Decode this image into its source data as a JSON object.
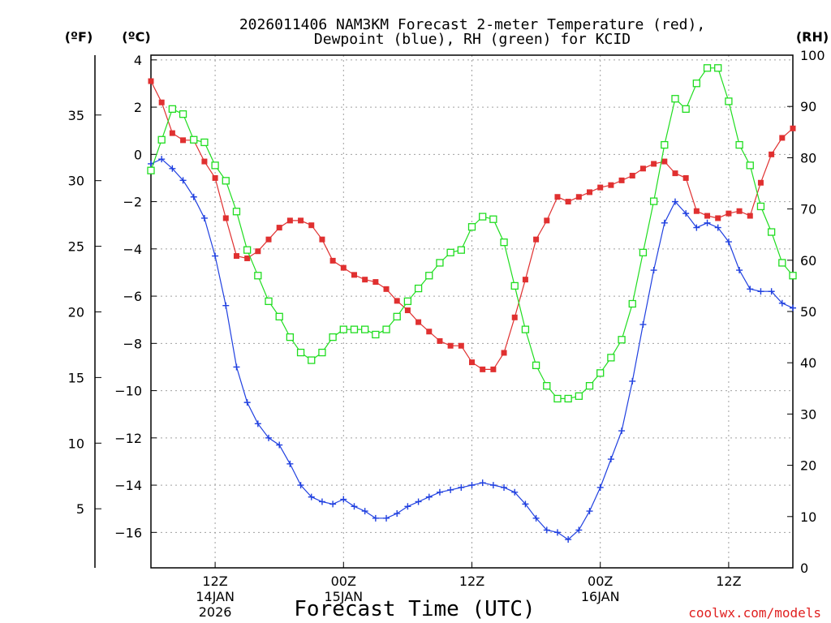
{
  "chart_data": {
    "type": "line",
    "title_line1": "2026011406 NAM3KM Forecast 2-meter Temperature (red),",
    "title_line2": "Dewpoint (blue), RH (green) for KCID",
    "unit_f": "(ºF)",
    "unit_c": "(ºC)",
    "unit_rh": "(RH)",
    "xlabel": "Forecast Time (UTC)",
    "credit": "coolwx.com/models",
    "x_start_hour": 6,
    "x_end_hour": 66,
    "x_step_hours": 1,
    "ylim_c": [
      -17.5,
      4.2
    ],
    "ylim_rh": [
      0,
      100
    ],
    "f_ticks": [
      35,
      30,
      25,
      20,
      15,
      10,
      5
    ],
    "c_ticks": [
      4,
      2,
      0,
      -2,
      -4,
      -6,
      -8,
      -10,
      -12,
      -14,
      -16
    ],
    "rh_ticks": [
      100,
      90,
      80,
      70,
      60,
      50,
      40,
      30,
      20,
      10,
      0
    ],
    "x_ticks": [
      {
        "hour": 12,
        "label": "12Z",
        "date": "14JAN",
        "year": "2026"
      },
      {
        "hour": 24,
        "label": "00Z",
        "date": "15JAN",
        "year": ""
      },
      {
        "hour": 36,
        "label": "12Z",
        "date": "",
        "year": ""
      },
      {
        "hour": 48,
        "label": "00Z",
        "date": "16JAN",
        "year": ""
      },
      {
        "hour": 60,
        "label": "12Z",
        "date": "",
        "year": ""
      }
    ],
    "series": [
      {
        "name": "2-meter Temperature",
        "unit": "C",
        "color": "#e03030",
        "marker": "filled-square",
        "values": [
          3.1,
          2.2,
          0.9,
          0.6,
          0.6,
          -0.3,
          -1.0,
          -2.7,
          -4.3,
          -4.4,
          -4.1,
          -3.6,
          -3.1,
          -2.8,
          -2.8,
          -3.0,
          -3.6,
          -4.5,
          -4.8,
          -5.1,
          -5.3,
          -5.4,
          -5.7,
          -6.2,
          -6.6,
          -7.1,
          -7.5,
          -7.9,
          -8.1,
          -8.1,
          -8.8,
          -9.1,
          -9.1,
          -8.4,
          -6.9,
          -5.3,
          -3.6,
          -2.8,
          -1.8,
          -2.0,
          -1.8,
          -1.6,
          -1.4,
          -1.3,
          -1.1,
          -0.9,
          -0.6,
          -0.4,
          -0.3,
          -0.8,
          -1.0,
          -2.4,
          -2.6,
          -2.7,
          -2.5,
          -2.4,
          -2.6,
          -1.2,
          0.0,
          0.7,
          1.1
        ]
      },
      {
        "name": "Dewpoint",
        "unit": "C",
        "color": "#2040e0",
        "marker": "plus",
        "values": [
          -0.4,
          -0.2,
          -0.6,
          -1.1,
          -1.8,
          -2.7,
          -4.3,
          -6.4,
          -9.0,
          -10.5,
          -11.4,
          -12.0,
          -12.3,
          -13.1,
          -14.0,
          -14.5,
          -14.7,
          -14.8,
          -14.6,
          -14.9,
          -15.1,
          -15.4,
          -15.4,
          -15.2,
          -14.9,
          -14.7,
          -14.5,
          -14.3,
          -14.2,
          -14.1,
          -14.0,
          -13.9,
          -14.0,
          -14.1,
          -14.3,
          -14.8,
          -15.4,
          -15.9,
          -16.0,
          -16.3,
          -15.9,
          -15.1,
          -14.1,
          -12.9,
          -11.7,
          -9.6,
          -7.2,
          -4.9,
          -2.9,
          -2.0,
          -2.5,
          -3.1,
          -2.9,
          -3.1,
          -3.7,
          -4.9,
          -5.7,
          -5.8,
          -5.8,
          -6.3,
          -6.5
        ]
      },
      {
        "name": "RH",
        "unit": "%",
        "color": "#20dd20",
        "marker": "open-square",
        "values": [
          77.5,
          83.5,
          89.5,
          88.5,
          83.5,
          83.0,
          78.5,
          75.5,
          69.5,
          62.0,
          57.0,
          52.0,
          49.0,
          45.0,
          42.0,
          40.5,
          42.0,
          45.0,
          46.5,
          46.5,
          46.5,
          45.5,
          46.5,
          49.0,
          52.0,
          54.5,
          57.0,
          59.5,
          61.5,
          62.0,
          66.5,
          68.5,
          68.0,
          63.5,
          55.0,
          46.5,
          39.5,
          35.5,
          33.0,
          33.0,
          33.5,
          35.5,
          38.0,
          41.0,
          44.5,
          51.5,
          61.5,
          71.5,
          82.5,
          91.5,
          89.5,
          94.5,
          97.5,
          97.5,
          91.0,
          82.5,
          78.5,
          70.5,
          65.5,
          59.5,
          57.0
        ]
      }
    ]
  }
}
